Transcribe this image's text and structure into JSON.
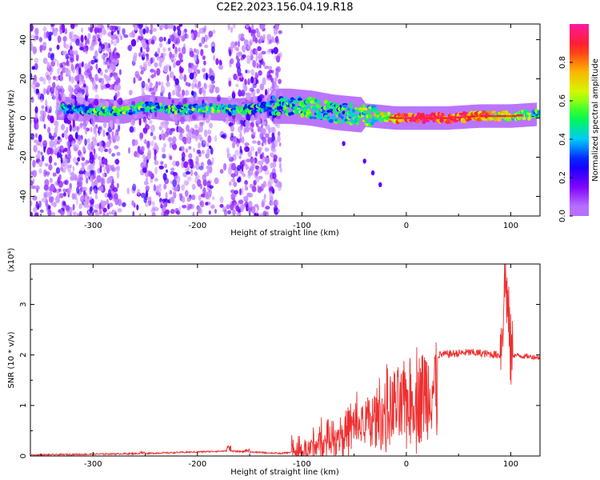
{
  "title": "C2E2.2023.156.04.19.R18",
  "colors": {
    "snr_line": "#ee3030",
    "cmap": [
      "#ffffff",
      "#c080ff",
      "#7d00ff",
      "#0000ff",
      "#00c8ff",
      "#00ff40",
      "#d0ff00",
      "#ffb000",
      "#ff2020",
      "#ff1aa0"
    ]
  },
  "chart_data": [
    {
      "type": "heatmap",
      "name": "spectrogram",
      "xlabel": "Height of straight line (km)",
      "ylabel": "Frequency (Hz)",
      "xlim": [
        -360,
        128
      ],
      "ylim": [
        -50,
        48
      ],
      "xticks": [
        -300,
        -200,
        -100,
        0,
        100
      ],
      "yticks": [
        -40,
        -20,
        0,
        20,
        40
      ],
      "grid": false,
      "ridge_points": [
        {
          "x": -330,
          "f": 5,
          "amp": 0.45
        },
        {
          "x": -300,
          "f": 4,
          "amp": 0.5
        },
        {
          "x": -270,
          "f": 3,
          "amp": 0.55
        },
        {
          "x": -250,
          "f": 6,
          "amp": 0.5
        },
        {
          "x": -220,
          "f": 4,
          "amp": 0.5
        },
        {
          "x": -190,
          "f": 5,
          "amp": 0.55
        },
        {
          "x": -160,
          "f": 4,
          "amp": 0.5
        },
        {
          "x": -130,
          "f": 6,
          "amp": 0.45
        },
        {
          "x": -110,
          "f": 6,
          "amp": 0.5
        },
        {
          "x": -90,
          "f": 5,
          "amp": 0.55
        },
        {
          "x": -70,
          "f": 3,
          "amp": 0.5
        },
        {
          "x": -50,
          "f": 2,
          "amp": 0.55
        },
        {
          "x": -30,
          "f": 1,
          "amp": 0.6
        },
        {
          "x": -10,
          "f": 0,
          "amp": 0.75
        },
        {
          "x": 10,
          "f": 0,
          "amp": 0.95
        },
        {
          "x": 40,
          "f": 0,
          "amp": 0.9
        },
        {
          "x": 70,
          "f": 1,
          "amp": 0.8
        },
        {
          "x": 100,
          "f": 1,
          "amp": 0.6
        },
        {
          "x": 128,
          "f": 2,
          "amp": 0.5
        }
      ],
      "branch_points": [
        {
          "x": -60,
          "f": -13
        },
        {
          "x": -40,
          "f": -22
        },
        {
          "x": -32,
          "f": -28
        },
        {
          "x": -25,
          "f": -34
        }
      ]
    },
    {
      "type": "colorbar",
      "label": "Normalized spectral amplitude",
      "ticks": [
        0.0,
        0.2,
        0.4,
        0.6,
        0.8
      ],
      "tick_labels": [
        "0.0",
        "0.2",
        "0.4",
        "0.6",
        "0.8"
      ],
      "range": [
        0,
        1
      ]
    },
    {
      "type": "line",
      "name": "snr",
      "xlabel": "Height of straight line (km)",
      "ylabel": "SNR (10 * v/v)",
      "scale_label": "(x10⁴)",
      "xlim": [
        -360,
        128
      ],
      "ylim": [
        0,
        3.8
      ],
      "xticks": [
        -300,
        -200,
        -100,
        0,
        100
      ],
      "yticks": [
        0,
        1,
        2,
        3
      ],
      "grid": false,
      "envelope": [
        {
          "x": -360,
          "y": 0.02
        },
        {
          "x": -250,
          "y": 0.05
        },
        {
          "x": -170,
          "y": 0.1
        },
        {
          "x": -120,
          "y": 0.05
        },
        {
          "x": -100,
          "y": 0.1
        },
        {
          "x": -80,
          "y": 0.4
        },
        {
          "x": -60,
          "y": 0.7
        },
        {
          "x": -40,
          "y": 0.9
        },
        {
          "x": -20,
          "y": 1.2
        },
        {
          "x": 0,
          "y": 1.5
        },
        {
          "x": 20,
          "y": 1.8
        },
        {
          "x": 30,
          "y": 2.0
        },
        {
          "x": 60,
          "y": 2.05
        },
        {
          "x": 90,
          "y": 2.0
        },
        {
          "x": 95,
          "y": 3.6
        },
        {
          "x": 100,
          "y": 2.0
        },
        {
          "x": 128,
          "y": 1.95
        }
      ]
    }
  ]
}
